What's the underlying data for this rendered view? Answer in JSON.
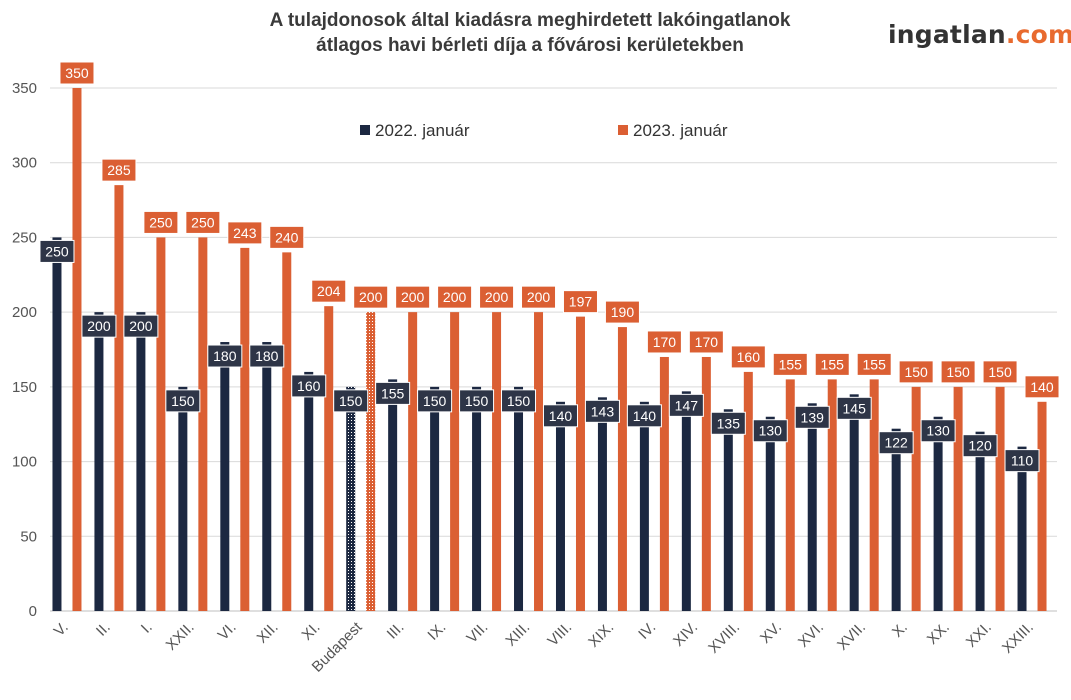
{
  "header": {
    "title_line1": "A tulajdonosok által kiadásra meghirdetett lakóingatlanok",
    "title_line2": "átlagos havi bérleti díja a fővárosi kerületekben",
    "brand_main": "ingatlan",
    "brand_dot": ".",
    "brand_tld": "com"
  },
  "colors": {
    "series_2022": "#1c2841",
    "series_2023": "#db5f33",
    "label_2022": "#2e3547",
    "brand_text": "#333333",
    "brand_accent": "#e86a2e",
    "grid": "#d9d9d9"
  },
  "chart_data": {
    "type": "bar",
    "title": "A tulajdonosok által kiadásra meghirdetett lakóingatlanok átlagos havi bérleti díja a fővárosi kerületekben",
    "xlabel": "",
    "ylabel": "",
    "ylim": [
      0,
      350
    ],
    "yticks": [
      0,
      50,
      100,
      150,
      200,
      250,
      300,
      350
    ],
    "grid": true,
    "legend_position": "top-center",
    "highlight_category": "Budapest",
    "categories": [
      "V.",
      "II.",
      "I.",
      "XXII.",
      "VI.",
      "XII.",
      "XI.",
      "Budapest",
      "III.",
      "IX.",
      "VII.",
      "XIII.",
      "VIII.",
      "XIX.",
      "IV.",
      "XIV.",
      "XVIII.",
      "XV.",
      "XVI.",
      "XVII.",
      "X.",
      "XX.",
      "XXI.",
      "XXIII."
    ],
    "series": [
      {
        "name": "2022. január",
        "values": [
          250,
          200,
          200,
          150,
          180,
          180,
          160,
          150,
          155,
          150,
          150,
          150,
          140,
          143,
          140,
          147,
          135,
          130,
          139,
          145,
          122,
          130,
          120,
          110
        ]
      },
      {
        "name": "2023. január",
        "values": [
          350,
          285,
          250,
          250,
          243,
          240,
          204,
          200,
          200,
          200,
          200,
          200,
          197,
          190,
          170,
          170,
          160,
          155,
          155,
          155,
          150,
          150,
          150,
          140
        ]
      }
    ]
  }
}
